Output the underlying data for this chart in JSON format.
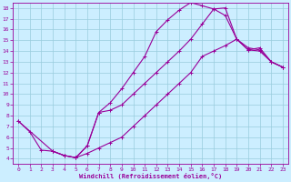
{
  "xlabel": "Windchill (Refroidissement éolien,°C)",
  "xlim": [
    -0.5,
    23.5
  ],
  "ylim": [
    3.5,
    18.5
  ],
  "xticks": [
    0,
    1,
    2,
    3,
    4,
    5,
    6,
    7,
    8,
    9,
    10,
    11,
    12,
    13,
    14,
    15,
    16,
    17,
    18,
    19,
    20,
    21,
    22,
    23
  ],
  "yticks": [
    4,
    5,
    6,
    7,
    8,
    9,
    10,
    11,
    12,
    13,
    14,
    15,
    16,
    17,
    18
  ],
  "bg_color": "#cceeff",
  "grid_color": "#99ccdd",
  "line_color": "#990099",
  "curve1_x": [
    0,
    1,
    2,
    3,
    4,
    5,
    6,
    7,
    8,
    9,
    10,
    11,
    12,
    13,
    14,
    15,
    16,
    17,
    18,
    19,
    20,
    21,
    22,
    23
  ],
  "curve1_y": [
    7.5,
    6.5,
    4.8,
    4.7,
    4.3,
    4.1,
    5.2,
    8.3,
    9.2,
    10.5,
    12.0,
    13.5,
    15.8,
    16.9,
    17.8,
    18.5,
    18.2,
    17.9,
    17.3,
    15.1,
    14.1,
    14.3,
    13.0,
    12.5
  ],
  "curve2_x": [
    0,
    3,
    4,
    5,
    6,
    7,
    8,
    9,
    10,
    11,
    12,
    13,
    14,
    15,
    16,
    17,
    18,
    19,
    20,
    21,
    22,
    23
  ],
  "curve2_y": [
    7.5,
    4.7,
    4.3,
    4.1,
    5.2,
    8.3,
    8.5,
    9.0,
    10.0,
    11.0,
    12.0,
    13.0,
    14.0,
    15.1,
    16.5,
    17.9,
    18.0,
    15.1,
    14.3,
    14.1,
    13.0,
    12.5
  ],
  "curve3_x": [
    3,
    4,
    5,
    6,
    7,
    8,
    9,
    10,
    11,
    12,
    13,
    14,
    15,
    16,
    17,
    18,
    19,
    20,
    21,
    22,
    23
  ],
  "curve3_y": [
    4.7,
    4.3,
    4.1,
    4.5,
    5.0,
    5.5,
    6.0,
    7.0,
    8.0,
    9.0,
    10.0,
    11.0,
    12.0,
    13.5,
    14.0,
    14.5,
    15.1,
    14.1,
    14.0,
    13.0,
    12.5
  ]
}
